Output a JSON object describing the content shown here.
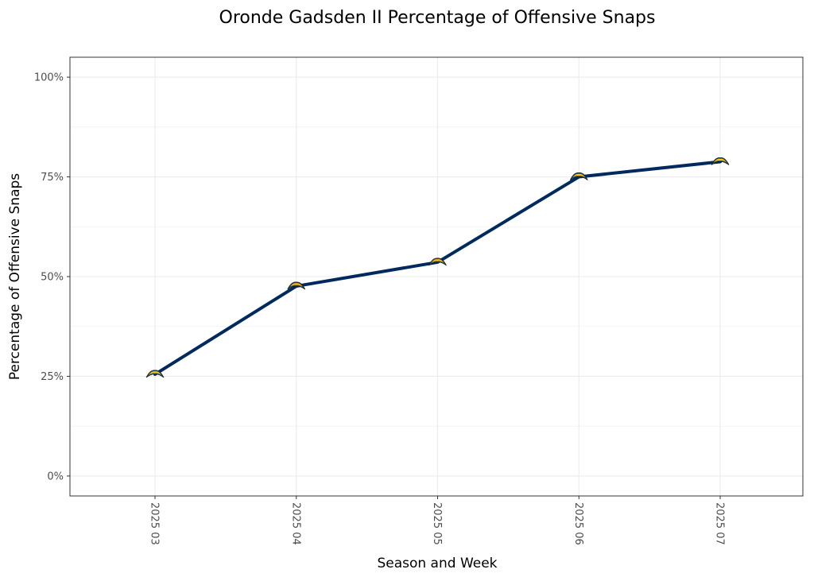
{
  "chart_data": {
    "type": "line",
    "title": "Oronde Gadsden II Percentage of Offensive Snaps",
    "xlabel": "Season and Week",
    "ylabel": "Percentage of Offensive Snaps",
    "categories": [
      "2025 03",
      "2025 04",
      "2025 05",
      "2025 06",
      "2025 07"
    ],
    "values": [
      0.255,
      0.476,
      0.536,
      0.75,
      0.788
    ],
    "ylim": [
      -0.05,
      1.05
    ],
    "yticks": [
      0,
      0.25,
      0.5,
      0.75,
      1.0
    ],
    "ytick_labels": [
      "0%",
      "25%",
      "50%",
      "75%",
      "100%"
    ],
    "grid": true,
    "legend": "none",
    "marker": "team-logo",
    "colors": {
      "line": "#002a5e",
      "logo_primary": "#ffc20e",
      "logo_secondary": "#0080c6"
    }
  }
}
